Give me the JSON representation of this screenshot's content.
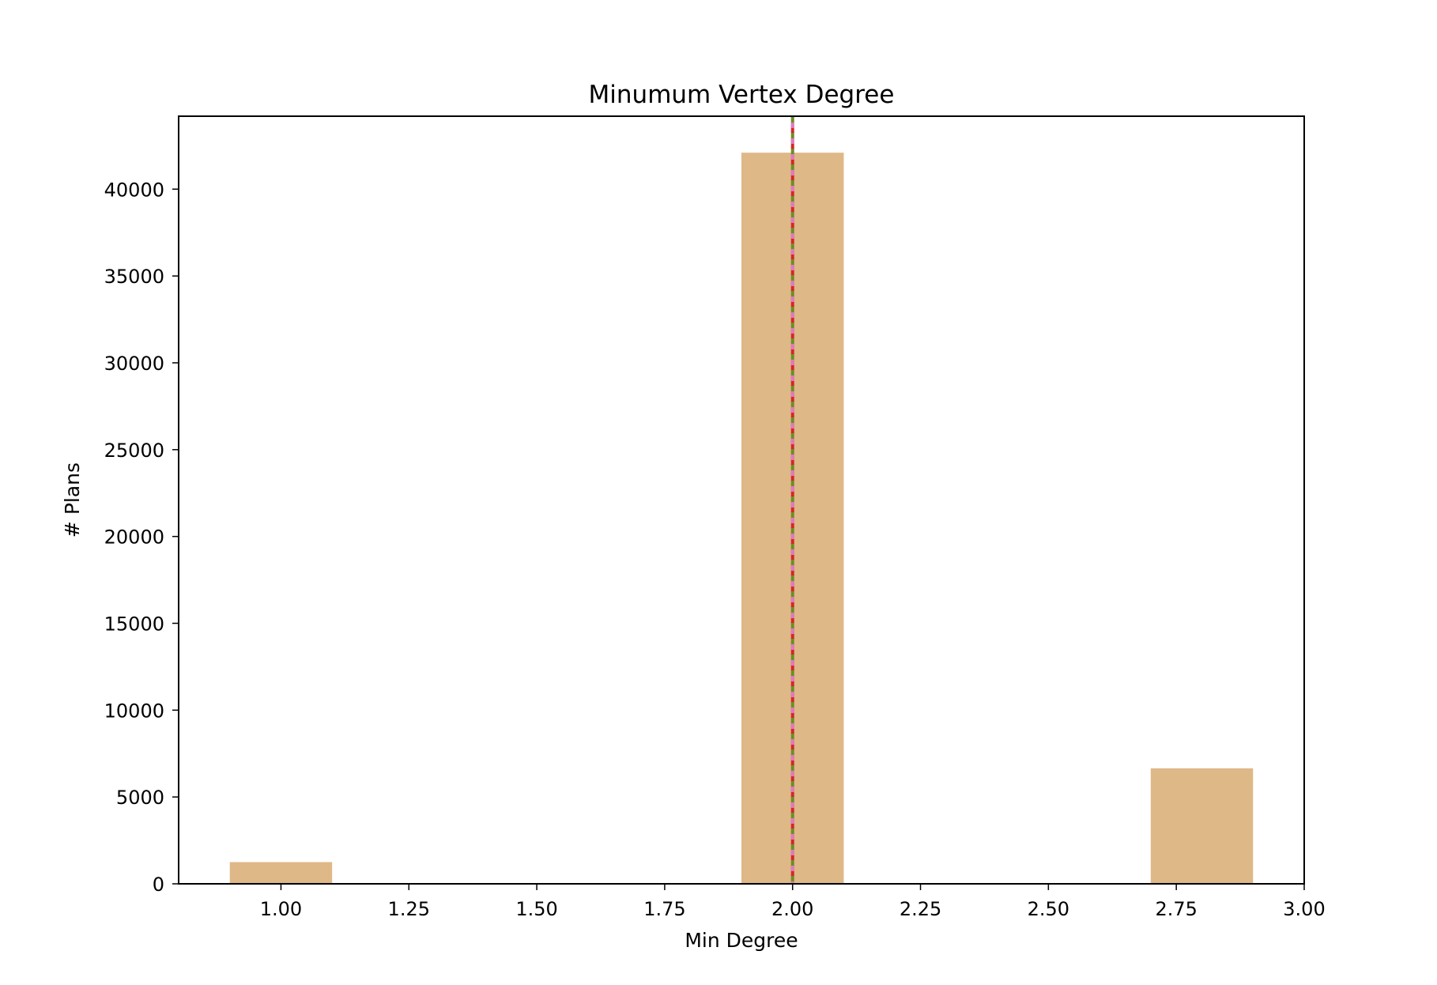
{
  "chart_data": {
    "type": "bar",
    "title": "Minumum Vertex Degree",
    "xlabel": "Min Degree",
    "ylabel": "# Plans",
    "xlim": [
      0.8,
      3.0
    ],
    "ylim": [
      0,
      44200
    ],
    "x_ticks": [
      1.0,
      1.25,
      1.5,
      1.75,
      2.0,
      2.25,
      2.5,
      2.75,
      3.0
    ],
    "x_tick_labels": [
      "1.00",
      "1.25",
      "1.50",
      "1.75",
      "2.00",
      "2.25",
      "2.50",
      "2.75",
      "3.00"
    ],
    "y_ticks": [
      0,
      5000,
      10000,
      15000,
      20000,
      25000,
      30000,
      35000,
      40000
    ],
    "y_tick_labels": [
      "0",
      "5000",
      "10000",
      "15000",
      "20000",
      "25000",
      "30000",
      "35000",
      "40000"
    ],
    "bars": [
      {
        "x_start": 0.9,
        "x_end": 1.1,
        "value": 1250
      },
      {
        "x_start": 1.9,
        "x_end": 2.1,
        "value": 42100
      },
      {
        "x_start": 2.7,
        "x_end": 2.9,
        "value": 6650
      }
    ],
    "reference_lines": [
      {
        "x": 2.0,
        "color": "#6b8e23",
        "style": "dashed"
      },
      {
        "x": 2.0,
        "color": "#d62728",
        "style": "dotted"
      },
      {
        "x": 2.0,
        "color": "#e377c2",
        "style": "dotted"
      }
    ],
    "bar_color": "#deb887",
    "grid": false,
    "legend": "none"
  }
}
